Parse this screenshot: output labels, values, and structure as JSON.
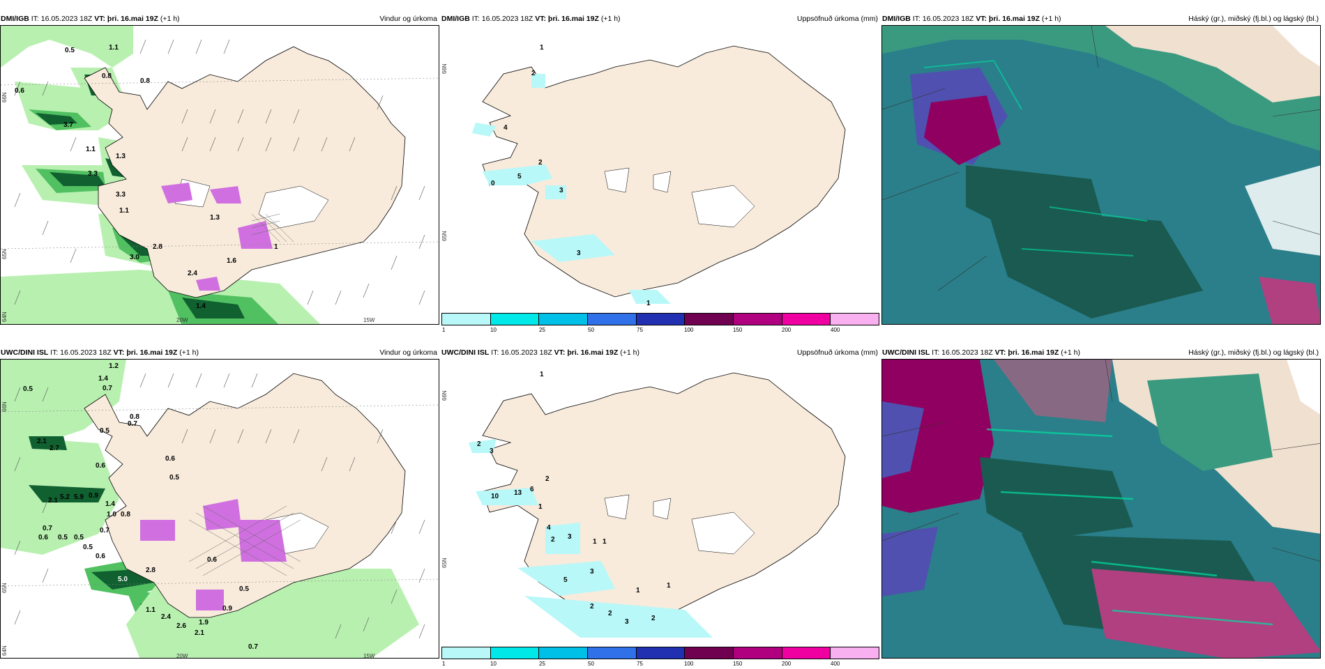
{
  "panels": [
    {
      "source": "DMI/IGB",
      "it": "IT: 16.05.2023 18Z",
      "vt": "VT: þri. 16.mai 19Z",
      "lead": "(+1 h)",
      "title": "Vindur og úrkoma"
    },
    {
      "source": "DMI/IGB",
      "it": "IT: 16.05.2023 18Z",
      "vt": "VT: þri. 16.mai 19Z",
      "lead": "(+1 h)",
      "title": "Uppsöfnuð úrkoma (mm)"
    },
    {
      "source": "DMI/IGB",
      "it": "IT: 16.05.2023 18Z",
      "vt": "VT: þri. 16.mai 19Z",
      "lead": "(+1 h)",
      "title": "Háský (gr.), miðský (fj.bl.) og lágský (bl.)"
    },
    {
      "source": "UWC/DINI ISL",
      "it": "IT: 16.05.2023 18Z",
      "vt": "VT: þri. 16.mai 19Z",
      "lead": "(+1 h)",
      "title": "Vindur og úrkoma"
    },
    {
      "source": "UWC/DINI ISL",
      "it": "IT: 16.05.2023 18Z",
      "vt": "VT: þri. 16.mai 19Z",
      "lead": "(+1 h)",
      "title": "Uppsöfnuð úrkoma (mm)"
    },
    {
      "source": "UWC/DINI ISL",
      "it": "IT: 16.05.2023 18Z",
      "vt": "VT: þri. 16.mai 19Z",
      "lead": "(+1 h)",
      "title": "Háský (gr.), miðský (fj.bl.) og lágský (bl.)"
    }
  ],
  "axis_labels": {
    "lon_20w": "20W",
    "lon_15w": "15W",
    "lat_66n": "66N",
    "lat_64n": "64N",
    "lat_65n": "65N"
  },
  "colorbar": {
    "labels": [
      "1",
      "10",
      "25",
      "50",
      "75",
      "100",
      "150",
      "200",
      "400"
    ],
    "colors": [
      "#b8f8f8",
      "#00e8e8",
      "#00c0e8",
      "#3070e8",
      "#2030b0",
      "#700050",
      "#b00080",
      "#f000a0",
      "#f8b0f0"
    ]
  },
  "wind_precip_labels_top": [
    "0.5",
    "1.1",
    "0.8",
    "0.6",
    "0.8",
    "3.7",
    "1.1",
    "1.3",
    "3.3",
    "3.3",
    "1.1",
    "2.8",
    "3.0",
    "2.4",
    "1.3",
    "1.4",
    "1.6",
    "1"
  ],
  "wind_precip_labels_bottom": [
    "1.2",
    "0.5",
    "1.4",
    "0.7",
    "0.8",
    "0.7",
    "0.5",
    "2.1",
    "2.7",
    "0.6",
    "0.6",
    "0.5",
    "5.2",
    "5.9",
    "2.1",
    "0.9",
    "1.4",
    "1.0",
    "0.8",
    "0.7",
    "0.6",
    "0.5",
    "0.5",
    "0.5",
    "0.6",
    "0.7",
    "5.0",
    "2.8",
    "1.1",
    "2.4",
    "2.6",
    "2.1",
    "1.9",
    "0.7",
    "0.5",
    "0.6",
    "0.9"
  ],
  "accum_labels_top": [
    "1",
    "2",
    "4",
    "2",
    "5",
    "0",
    "3",
    "3",
    "1"
  ],
  "accum_labels_bottom": [
    "1",
    "2",
    "3",
    "13",
    "6",
    "10",
    "2",
    "1",
    "4",
    "2",
    "3",
    "1",
    "1",
    "5",
    "3",
    "2",
    "2",
    "3",
    "2",
    "1",
    "1"
  ],
  "colors": {
    "land": "#f8ebdc",
    "green_light": "#b8f0b0",
    "green_mid": "#50c060",
    "green_dark": "#106030",
    "purple": "#d070e0",
    "cloud_teal": "#2a7f8a",
    "cloud_dark": "#1a5a50",
    "cloud_magenta": "#900060"
  }
}
